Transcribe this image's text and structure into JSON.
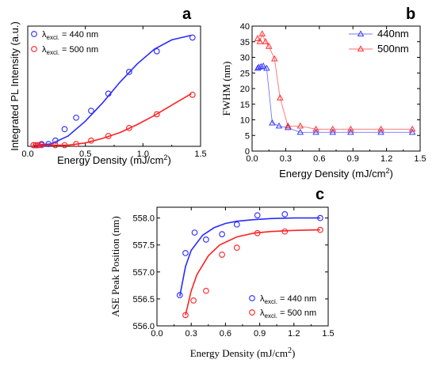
{
  "chart_data": [
    {
      "panel": "a",
      "type": "scatter",
      "xlabel": "Energy Density (mJ/cm",
      "xlabel_sup": "2",
      "xlabel_end": ")",
      "ylabel": "Integrated PL Intensity (a.u.)",
      "xlim": [
        0,
        1.5
      ],
      "xticks": [
        0.0,
        0.5,
        1.0,
        1.5
      ],
      "xtick_labels": [
        "0.0",
        "0.5",
        "1.0",
        "1.5"
      ],
      "ylim": [
        0,
        1.05
      ],
      "legend_position": "top-left",
      "series": [
        {
          "label_prefix": "λ",
          "label_sub": "exci.",
          "label_rest": " = 440 nm",
          "color": "#2a2aff",
          "x": [
            0.05,
            0.07,
            0.09,
            0.12,
            0.18,
            0.24,
            0.32,
            0.42,
            0.55,
            0.7,
            0.88,
            1.12,
            1.43
          ],
          "y": [
            0.01,
            0.01,
            0.01,
            0.02,
            0.02,
            0.05,
            0.15,
            0.25,
            0.31,
            0.46,
            0.65,
            0.83,
            0.95
          ],
          "fit_x": [
            0.05,
            0.2,
            0.35,
            0.5,
            0.65,
            0.8,
            0.95,
            1.1,
            1.25,
            1.42
          ],
          "fit_y": [
            0.01,
            0.02,
            0.09,
            0.22,
            0.38,
            0.56,
            0.72,
            0.85,
            0.93,
            0.97
          ]
        },
        {
          "label_prefix": "λ",
          "label_sub": "exci.",
          "label_rest": " = 500 nm",
          "color": "#ff2020",
          "x": [
            0.05,
            0.07,
            0.09,
            0.12,
            0.24,
            0.32,
            0.42,
            0.55,
            0.7,
            0.88,
            1.12,
            1.43
          ],
          "y": [
            0.01,
            0.01,
            0.01,
            0.01,
            0.01,
            0.01,
            0.02,
            0.05,
            0.09,
            0.16,
            0.28,
            0.45
          ],
          "fit_x": [
            0.05,
            0.2,
            0.35,
            0.5,
            0.65,
            0.8,
            0.95,
            1.1,
            1.25,
            1.42
          ],
          "fit_y": [
            0.01,
            0.01,
            0.01,
            0.03,
            0.07,
            0.12,
            0.19,
            0.27,
            0.36,
            0.46
          ]
        }
      ]
    },
    {
      "panel": "b",
      "type": "line",
      "xlabel": "Energy Density (mJ/cm",
      "xlabel_sup": "2",
      "xlabel_end": ")",
      "ylabel": "FWHM (nm)",
      "xlim": [
        0,
        1.5
      ],
      "xticks": [
        0.0,
        0.3,
        0.6,
        0.9,
        1.2,
        1.5
      ],
      "xtick_labels": [
        "0.0",
        "0.3",
        "0.6",
        "0.9",
        "1.2",
        "1.5"
      ],
      "ylim": [
        0,
        40
      ],
      "yticks": [
        0,
        5,
        10,
        15,
        20,
        25,
        30,
        35,
        40
      ],
      "ytick_labels": [
        "0",
        "5",
        "10",
        "15",
        "20",
        "25",
        "30",
        "35",
        "40"
      ],
      "legend_position": "top-right",
      "series": [
        {
          "name": "440nm",
          "color": "#3a3aff",
          "x": [
            0.05,
            0.06,
            0.08,
            0.1,
            0.13,
            0.18,
            0.24,
            0.32,
            0.43,
            0.57,
            0.72,
            0.88,
            1.15,
            1.43
          ],
          "y": [
            26.5,
            26.8,
            27.0,
            27.2,
            26.5,
            9.0,
            8.0,
            7.5,
            6.0,
            6.0,
            6.0,
            6.0,
            6.0,
            6.0
          ]
        },
        {
          "name": "500nm",
          "color": "#ff3030",
          "x": [
            0.05,
            0.07,
            0.09,
            0.12,
            0.15,
            0.2,
            0.25,
            0.32,
            0.43,
            0.57,
            0.72,
            0.88,
            1.15,
            1.43
          ],
          "y": [
            36.0,
            35.0,
            37.5,
            35.0,
            33.5,
            29.5,
            17.0,
            8.0,
            8.0,
            7.0,
            7.0,
            7.0,
            7.0,
            7.0
          ]
        }
      ]
    },
    {
      "panel": "c",
      "type": "scatter",
      "xlabel": "Energy Density (mJ/cm",
      "xlabel_sup": "2",
      "xlabel_end": ")",
      "ylabel": "ASE Peak Position (nm)",
      "xlim": [
        0,
        1.5
      ],
      "xticks": [
        0.0,
        0.3,
        0.6,
        0.9,
        1.2,
        1.5
      ],
      "xtick_labels": [
        "0.0",
        "0.3",
        "0.6",
        "0.9",
        "1.2",
        "1.5"
      ],
      "ylim": [
        556.0,
        558.2
      ],
      "yticks": [
        556.0,
        556.5,
        557.0,
        557.5,
        558.0
      ],
      "ytick_labels": [
        "556.0",
        "556.5",
        "557.0",
        "557.5",
        "558.0"
      ],
      "legend_position": "bottom-right",
      "series": [
        {
          "label_prefix": "λ",
          "label_sub": "exci.",
          "label_rest": " = 440 nm",
          "color": "#2a2aff",
          "x": [
            0.2,
            0.25,
            0.33,
            0.43,
            0.57,
            0.7,
            0.88,
            1.12,
            1.43
          ],
          "y": [
            556.57,
            557.35,
            557.73,
            557.6,
            557.7,
            557.88,
            558.05,
            558.07,
            558.0
          ],
          "fit_x": [
            0.2,
            0.25,
            0.3,
            0.4,
            0.5,
            0.6,
            0.7,
            0.85,
            1.0,
            1.2,
            1.43
          ],
          "fit_y": [
            556.55,
            557.1,
            557.4,
            557.68,
            557.82,
            557.9,
            557.94,
            557.97,
            557.99,
            558.0,
            558.0
          ]
        },
        {
          "label_prefix": "λ",
          "label_sub": "exci.",
          "label_rest": " = 500 nm",
          "color": "#ff2020",
          "x": [
            0.25,
            0.32,
            0.43,
            0.57,
            0.7,
            0.88,
            1.12,
            1.43
          ],
          "y": [
            556.2,
            556.47,
            556.65,
            557.32,
            557.45,
            557.72,
            557.75,
            557.78
          ],
          "fit_x": [
            0.25,
            0.3,
            0.35,
            0.45,
            0.55,
            0.7,
            0.85,
            1.0,
            1.2,
            1.43
          ],
          "fit_y": [
            556.2,
            556.65,
            556.95,
            557.3,
            557.5,
            557.65,
            557.72,
            557.75,
            557.77,
            557.78
          ]
        }
      ]
    }
  ],
  "panel_letters": [
    "a",
    "b",
    "c"
  ]
}
